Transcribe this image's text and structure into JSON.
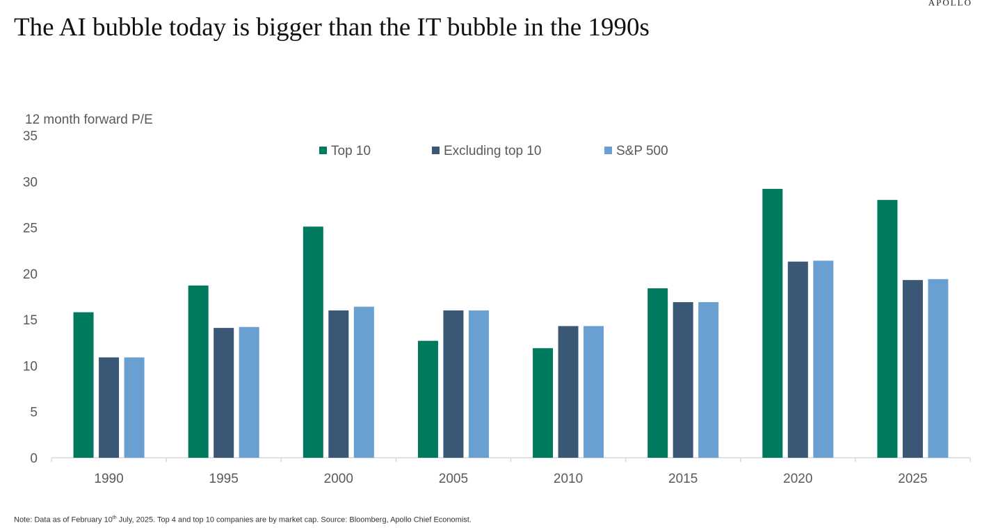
{
  "brand": "APOLLO",
  "title": "The AI bubble today is bigger than the IT bubble in the 1990s",
  "footnote": {
    "before_sup": "Note: Data as of February 10",
    "sup": "th",
    "after_sup": " July, 2025. Top 4 and top 10 companies are by market cap. Source: Bloomberg, Apollo Chief Economist."
  },
  "chart_data": {
    "type": "bar",
    "title": "The AI bubble today is bigger than the IT bubble in the 1990s",
    "ylabel": "12 month forward P/E",
    "xlabel": "",
    "categories": [
      "1990",
      "1995",
      "2000",
      "2005",
      "2010",
      "2015",
      "2020",
      "2025"
    ],
    "ylim": [
      0,
      35
    ],
    "yticks": [
      0,
      5,
      10,
      15,
      20,
      25,
      30,
      35
    ],
    "grid": false,
    "legend_position": "top",
    "series": [
      {
        "name": "Top 10",
        "color": "#007A5E",
        "values": [
          15.8,
          18.7,
          25.1,
          12.7,
          11.9,
          18.4,
          29.2,
          28.0
        ]
      },
      {
        "name": "Excluding top 10",
        "color": "#3A5876",
        "values": [
          10.9,
          14.1,
          16.0,
          16.0,
          14.3,
          16.9,
          21.3,
          19.3
        ]
      },
      {
        "name": "S&P 500",
        "color": "#6A9FD1",
        "values": [
          10.9,
          14.2,
          16.4,
          16.0,
          14.3,
          16.9,
          21.4,
          19.4
        ]
      }
    ]
  }
}
